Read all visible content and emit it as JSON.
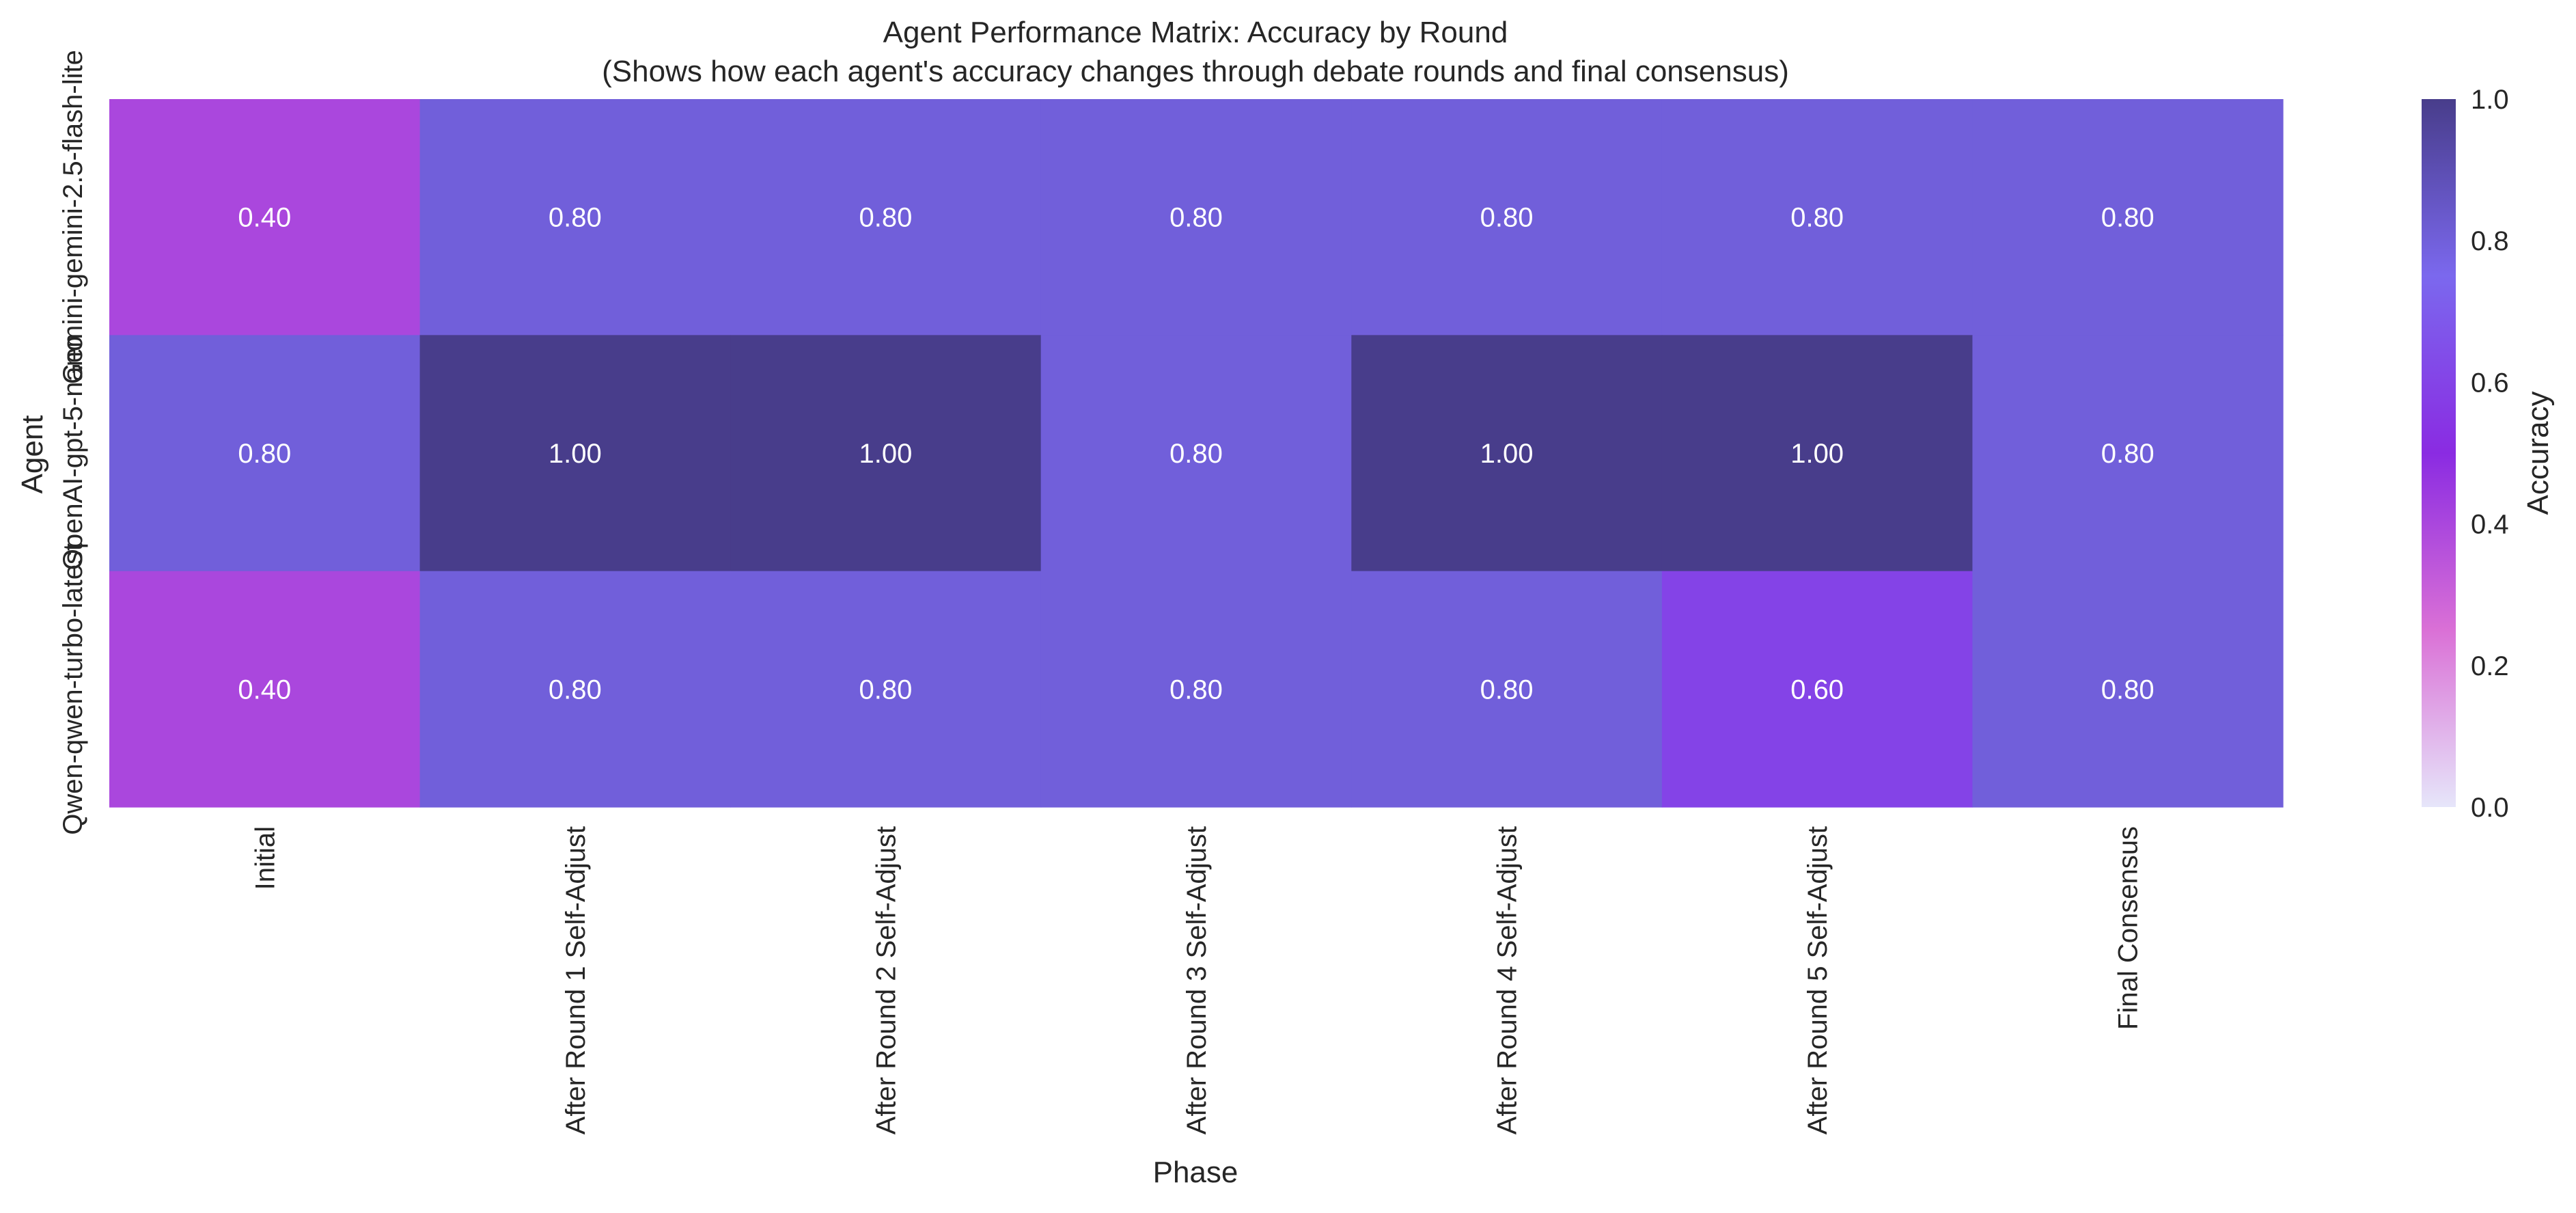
{
  "chart_data": {
    "type": "heatmap",
    "title": "Agent Performance Matrix: Accuracy by Round",
    "subtitle": "(Shows how each agent's accuracy changes through debate rounds and final consensus)",
    "xlabel": "Phase",
    "ylabel": "Agent",
    "x_categories": [
      "Initial",
      "After Round 1 Self-Adjust",
      "After Round 2 Self-Adjust",
      "After Round 3 Self-Adjust",
      "After Round 4 Self-Adjust",
      "After Round 5 Self-Adjust",
      "Final Consensus"
    ],
    "y_categories": [
      "Gemini-gemini-2.5-flash-lite",
      "OpenAI-gpt-5-nano",
      "Qwen-qwen-turbo-latest"
    ],
    "values": [
      [
        0.4,
        0.8,
        0.8,
        0.8,
        0.8,
        0.8,
        0.8
      ],
      [
        0.8,
        1.0,
        1.0,
        0.8,
        1.0,
        1.0,
        0.8
      ],
      [
        0.4,
        0.8,
        0.8,
        0.8,
        0.8,
        0.6,
        0.8
      ]
    ],
    "cell_labels": [
      [
        "0.40",
        "0.80",
        "0.80",
        "0.80",
        "0.80",
        "0.80",
        "0.80"
      ],
      [
        "0.80",
        "1.00",
        "1.00",
        "0.80",
        "1.00",
        "1.00",
        "0.80"
      ],
      [
        "0.40",
        "0.80",
        "0.80",
        "0.80",
        "0.80",
        "0.60",
        "0.80"
      ]
    ],
    "colorbar": {
      "label": "Accuracy",
      "range": [
        0,
        1
      ],
      "ticks": [
        "0.0",
        "0.2",
        "0.4",
        "0.6",
        "0.8",
        "1.0"
      ],
      "colors": [
        "#e6e6fa",
        "#da70d6",
        "#8a2be2",
        "#7b68ee",
        "#483d8b"
      ]
    },
    "cell_text_color": "#ffffff",
    "grid": false
  }
}
